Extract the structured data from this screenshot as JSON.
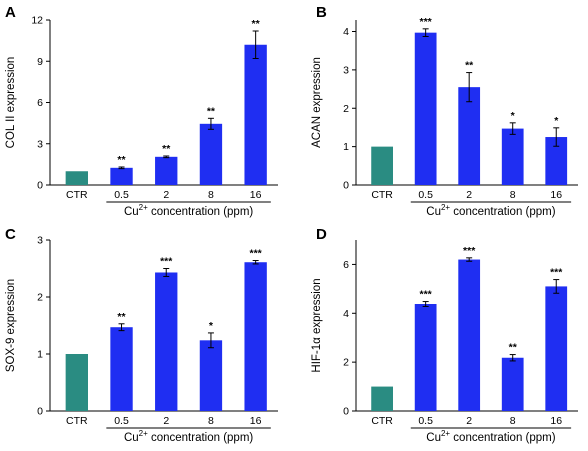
{
  "colors": {
    "control": "#2a8c82",
    "treated": "#1f2ef2",
    "axis": "#000000"
  },
  "chart_data": [
    {
      "panel": "A",
      "type": "bar",
      "categories": [
        "CTR",
        "0.5",
        "2",
        "8",
        "16"
      ],
      "values": [
        1.0,
        1.25,
        2.05,
        4.45,
        10.2
      ],
      "errors": [
        0,
        0.06,
        0.06,
        0.4,
        1.0
      ],
      "significance": [
        "",
        "**",
        "**",
        "**",
        "**"
      ],
      "ylabel": "COL II expression",
      "xlabel": "Cu2+ concentration (ppm)",
      "xlabel_main": "Cu",
      "xlabel_sup": "2+",
      "xlabel_rest": " concentration (ppm)",
      "ylim": [
        0,
        12
      ],
      "yticks": [
        "0",
        "3",
        "6",
        "9",
        "12"
      ]
    },
    {
      "panel": "B",
      "type": "bar",
      "categories": [
        "CTR",
        "0.5",
        "2",
        "8",
        "16"
      ],
      "values": [
        1.0,
        3.97,
        2.55,
        1.47,
        1.25
      ],
      "errors": [
        0,
        0.1,
        0.38,
        0.15,
        0.24
      ],
      "significance": [
        "",
        "***",
        "**",
        "*",
        "*"
      ],
      "ylabel": "ACAN expression",
      "xlabel": "Cu2+ concentration (ppm)",
      "xlabel_main": "Cu",
      "xlabel_sup": "2+",
      "xlabel_rest": " concentration (ppm)",
      "ylim": [
        0,
        4.3
      ],
      "yticks": [
        "0",
        "1",
        "2",
        "3",
        "4"
      ]
    },
    {
      "panel": "C",
      "type": "bar",
      "categories": [
        "CTR",
        "0.5",
        "2",
        "8",
        "16"
      ],
      "values": [
        1.0,
        1.47,
        2.43,
        1.24,
        2.61
      ],
      "errors": [
        0,
        0.06,
        0.07,
        0.13,
        0.03
      ],
      "significance": [
        "",
        "**",
        "***",
        "*",
        "***"
      ],
      "ylabel": "SOX-9 expression",
      "xlabel": "Cu2+ concentration (ppm)",
      "xlabel_main": "Cu",
      "xlabel_sup": "2+",
      "xlabel_rest": " concentration (ppm)",
      "ylim": [
        0,
        3
      ],
      "yticks": [
        "0",
        "1",
        "2",
        "3"
      ]
    },
    {
      "panel": "D",
      "type": "bar",
      "categories": [
        "CTR",
        "0.5",
        "2",
        "8",
        "16"
      ],
      "values": [
        1.0,
        4.38,
        6.2,
        2.18,
        5.1
      ],
      "errors": [
        0,
        0.1,
        0.07,
        0.13,
        0.28
      ],
      "significance": [
        "",
        "***",
        "***",
        "**",
        "***"
      ],
      "ylabel": "HIF-1α  expression",
      "xlabel": "Cu2+ concentration (ppm)",
      "xlabel_main": "Cu",
      "xlabel_sup": "2+",
      "xlabel_rest": " concentration (ppm)",
      "ylim": [
        0,
        7
      ],
      "yticks": [
        "0",
        "2",
        "4",
        "6"
      ]
    }
  ]
}
